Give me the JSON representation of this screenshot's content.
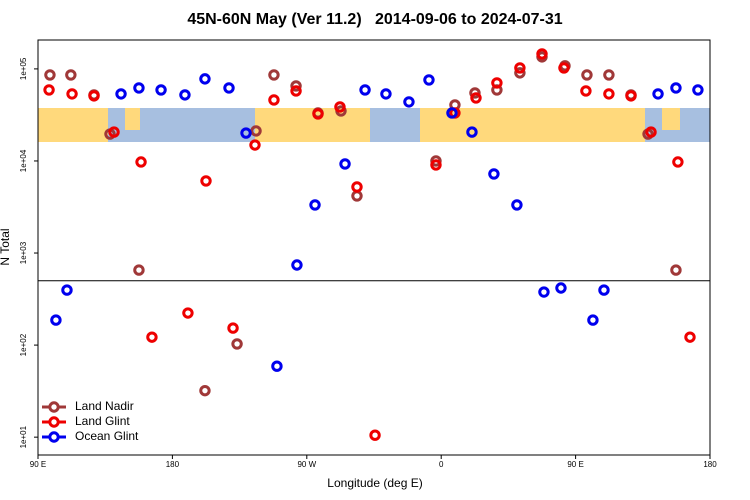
{
  "chart_data": {
    "type": "scatter",
    "title": "45N-60N May (Ver 11.2)   2014-09-06 to 2024-07-31",
    "xlabel": "Longitude (deg E)",
    "ylabel": "N Total",
    "xlim": [
      90,
      540
    ],
    "xticks": [
      {
        "value": 90,
        "label": "90 E"
      },
      180,
      {
        "value": 270,
        "label": "90 W"
      },
      {
        "value": 360,
        "label": "0"
      },
      {
        "value": 450,
        "label": "90 E"
      },
      {
        "value": 540,
        "label": "180"
      }
    ],
    "ylim": [
      6.4,
      206000
    ],
    "yscale": "log",
    "yticks": [
      {
        "value": 10,
        "label": "1e+01"
      },
      {
        "value": 100,
        "label": "1e+02"
      },
      {
        "value": 1000,
        "label": "1e+03"
      },
      {
        "value": 10000,
        "label": "1e+04"
      },
      {
        "value": 100000,
        "label": "1e+05"
      }
    ],
    "reference_line": 500,
    "legend": "bottom-left",
    "series": [
      {
        "name": "Land Nadir",
        "color": "#a03838",
        "x": [
          98,
          112,
          127.5,
          138.2,
          157.6,
          201.8,
          223.3,
          236,
          248,
          262.8,
          277.5,
          292.9,
          303.6,
          356.5,
          369.2,
          382.6,
          397.3,
          412.7,
          427.5,
          442.9,
          457.6,
          472.3,
          487.1,
          498.5,
          517.2
        ],
        "values": [
          86000,
          86000,
          52200,
          19600,
          653,
          32,
          103,
          21200,
          86000,
          65300,
          33200,
          34900,
          4170,
          10000,
          40600,
          54800,
          59100,
          90500,
          135000,
          108000,
          86000,
          86000,
          52200,
          19600,
          653
        ]
      },
      {
        "name": "Land Glint",
        "color": "#ee0000",
        "x": [
          97.4,
          112.8,
          127.5,
          140.9,
          159,
          166.3,
          190.4,
          202.5,
          220.6,
          235.3,
          248,
          262.8,
          277.5,
          292.2,
          303.6,
          315.7,
          356.5,
          369.2,
          383.3,
          397.3,
          412.7,
          427.5,
          442.2,
          456.9,
          472.3,
          487.1,
          500.5,
          518.5,
          526.6
        ],
        "values": [
          59100,
          53500,
          50900,
          20600,
          9750,
          122,
          223,
          6070,
          153,
          14900,
          46000,
          57600,
          32400,
          38600,
          5220,
          10.5,
          9050,
          33200,
          48400,
          70400,
          102500,
          145500,
          102500,
          57600,
          53500,
          50900,
          20600,
          9750,
          122
        ]
      },
      {
        "name": "Ocean Glint",
        "color": "#0000ee",
        "x": [
          102,
          109.4,
          145.6,
          157.6,
          172.4,
          188.4,
          201.8,
          217.9,
          229.3,
          250,
          263.4,
          275.5,
          295.6,
          309,
          323,
          338.4,
          351.8,
          367.2,
          380.6,
          395.3,
          410.7,
          428.8,
          440.2,
          461.6,
          469,
          505.2,
          517.2,
          531.9
        ],
        "values": [
          187,
          396,
          53500,
          62100,
          59100,
          52200,
          77900,
          62100,
          20100,
          59,
          741,
          3330,
          9280,
          59100,
          53500,
          43800,
          75900,
          33200,
          20600,
          7230,
          3330,
          377,
          417,
          187,
          396,
          53500,
          62100,
          59100
        ]
      }
    ]
  }
}
